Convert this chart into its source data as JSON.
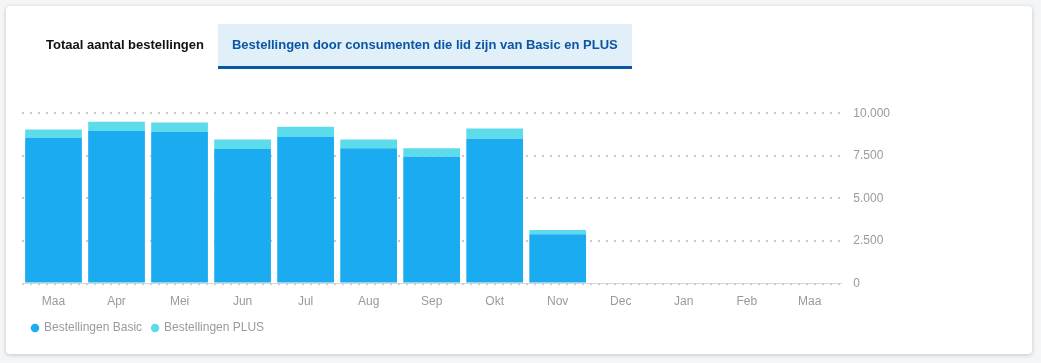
{
  "chart_data": {
    "type": "bar",
    "title": "Totaal aantal bestellingen",
    "subtitle": "Bestellingen door consumenten die lid zijn van Basic en PLUS",
    "categories": [
      "Maa",
      "Apr",
      "Mei",
      "Jun",
      "Jul",
      "Aug",
      "Sep",
      "Okt",
      "Nov",
      "Dec",
      "Jan",
      "Feb",
      "Maa"
    ],
    "series": [
      {
        "name": "Bestellingen Basic",
        "color": "#1aabf0",
        "values": [
          8550,
          8950,
          8900,
          7900,
          8600,
          7950,
          7450,
          8500,
          2900,
          null,
          null,
          null,
          null
        ]
      },
      {
        "name": "Bestellingen PLUS",
        "color": "#5cdcea",
        "values": [
          500,
          550,
          550,
          550,
          600,
          500,
          500,
          600,
          250,
          null,
          null,
          null,
          null
        ]
      }
    ],
    "stacked": true,
    "ylim": [
      0,
      10000
    ],
    "yticks": [
      {
        "value": 0,
        "label": "0"
      },
      {
        "value": 2500,
        "label": "2.500"
      },
      {
        "value": 5000,
        "label": "5.000"
      },
      {
        "value": 7500,
        "label": "7.500"
      },
      {
        "value": 10000,
        "label": "10.000"
      }
    ],
    "grid": "y",
    "legend": "bottom left"
  }
}
